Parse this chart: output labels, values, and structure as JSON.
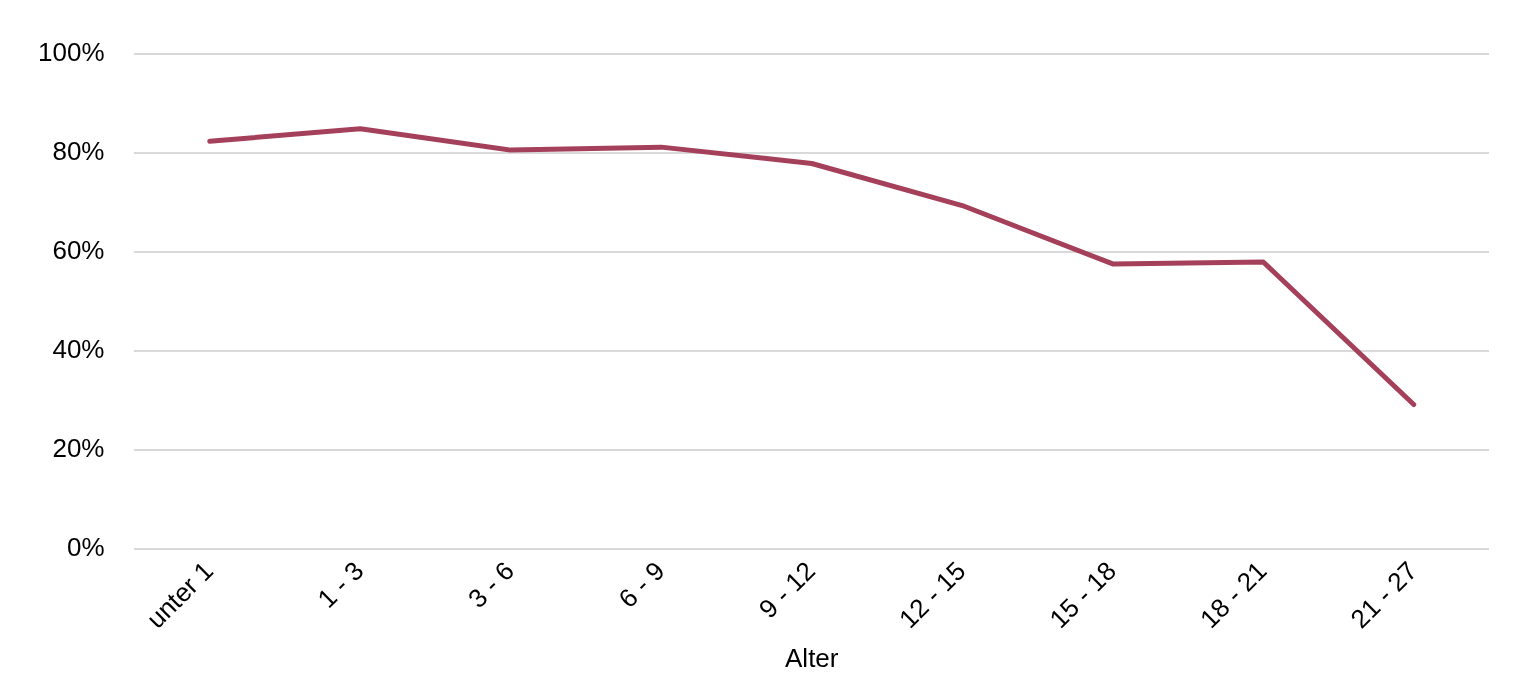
{
  "chart_data": {
    "type": "line",
    "xlabel": "Alter",
    "categories": [
      "unter 1",
      "1 - 3",
      "3 - 6",
      "6 - 9",
      "9 - 12",
      "12 - 15",
      "15 - 18",
      "18 - 21",
      "21 - 27"
    ],
    "series": [
      {
        "color": "#a5405a",
        "values": [
          82.3,
          84.8,
          80.5,
          81.1,
          77.8,
          69.3,
          57.5,
          57.9,
          29.1
        ]
      }
    ],
    "ylim": [
      0,
      100
    ],
    "yticks": [
      {
        "value": 0,
        "label": "0%"
      },
      {
        "value": 20,
        "label": "20%"
      },
      {
        "value": 40,
        "label": "40%"
      },
      {
        "value": 60,
        "label": "60%"
      },
      {
        "value": 80,
        "label": "80%"
      },
      {
        "value": 100,
        "label": "100%"
      }
    ],
    "grid": "y",
    "legend": false,
    "marker": "none",
    "line_style": "solid"
  }
}
